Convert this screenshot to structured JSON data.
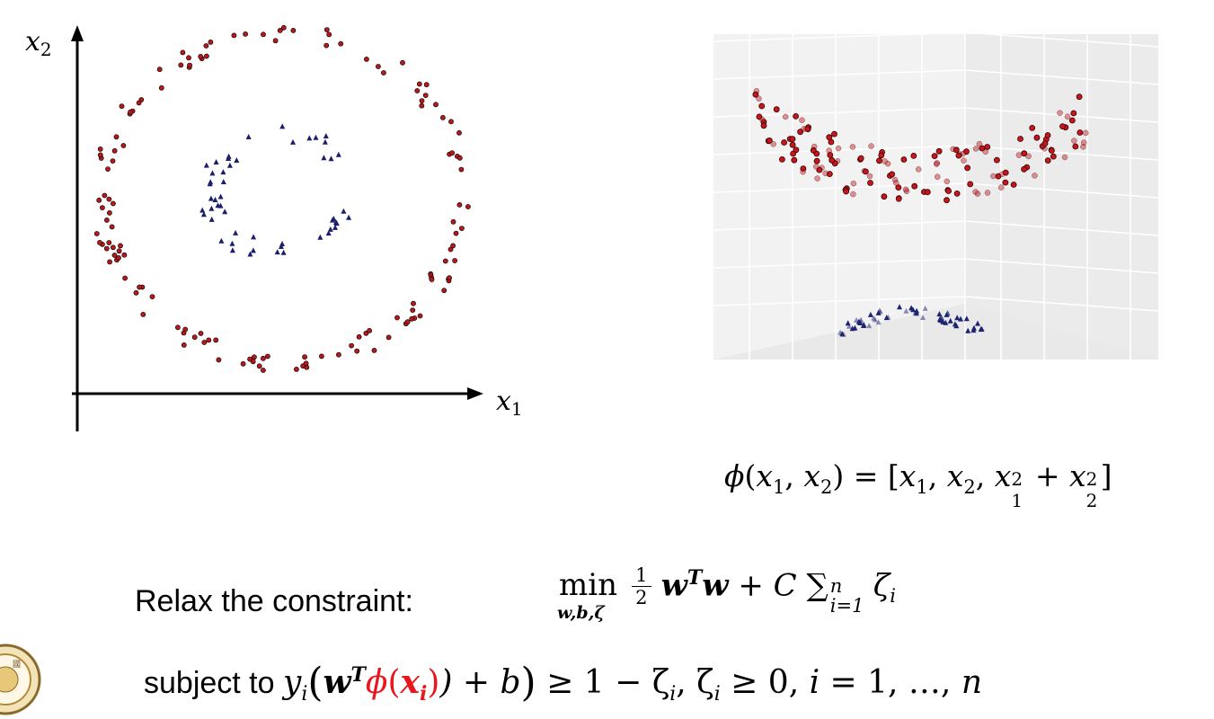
{
  "plot2d": {
    "x_label": "x",
    "x_sub": "1",
    "y_label": "x",
    "y_sub": "2",
    "outer_color": "#b5191b",
    "inner_color": "#1b1f6b"
  },
  "plot3d": {
    "point_color": "#c8161d",
    "triangle_color": "#1b2470"
  },
  "phi_equation": {
    "phi": "ϕ",
    "open": "(",
    "x": "x",
    "sub1": "1",
    "comma": ", ",
    "sub2": "2",
    "eq": ") = [",
    "close": "]",
    "plus": " + ",
    "sq": "2"
  },
  "relax": {
    "label": "Relax the constraint:"
  },
  "objective": {
    "min": "min",
    "min_sub": "w,b,ζ",
    "frac_num": "1",
    "frac_den": "2",
    "w": "w",
    "T": "T",
    "plus_C": " + C ",
    "sum": "∑",
    "sum_sup": "n",
    "sum_sub": "i=1",
    "zeta": "ζ",
    "i": "i"
  },
  "constraint": {
    "subject_to": "subject to ",
    "y": "y",
    "i": "i",
    "phi": "ϕ",
    "x": "x",
    "rest_b": ") + b",
    "rest": " ≥ 1 − ζ",
    "rest2": ", ζ",
    "rest3": " ≥ 0, ",
    "rest4": " = 1, …, ",
    "n": "n"
  }
}
